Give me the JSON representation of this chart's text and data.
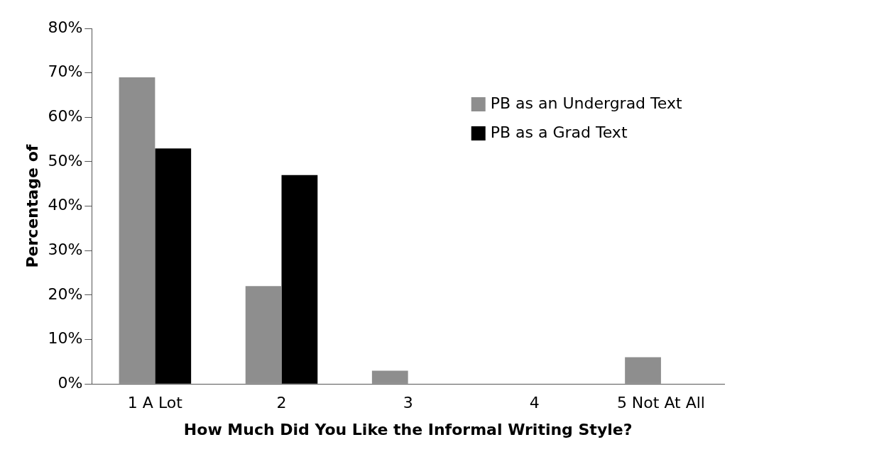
{
  "chart_data": {
    "type": "bar",
    "xlabel": "How Much Did You Like the Informal Writing Style?",
    "ylabel": "Percentage of",
    "categories": [
      "1 A Lot",
      "2",
      "3",
      "4",
      "5 Not At All"
    ],
    "series": [
      {
        "name": "PB as an Undergrad Text",
        "color": "#8e8e8e",
        "values": [
          69,
          22,
          3,
          0,
          6
        ]
      },
      {
        "name": "PB as a Grad Text",
        "color": "#000000",
        "values": [
          53,
          47,
          0,
          0,
          0
        ]
      }
    ],
    "ylim": [
      0,
      80
    ],
    "yticks": [
      {
        "value": 0,
        "label": "0%"
      },
      {
        "value": 10,
        "label": "10%"
      },
      {
        "value": 20,
        "label": "20%"
      },
      {
        "value": 30,
        "label": "30%"
      },
      {
        "value": 40,
        "label": "40%"
      },
      {
        "value": 50,
        "label": "50%"
      },
      {
        "value": 60,
        "label": "60%"
      },
      {
        "value": 70,
        "label": "70%"
      },
      {
        "value": 80,
        "label": "80%"
      }
    ],
    "grid": false,
    "legend": "top right"
  }
}
